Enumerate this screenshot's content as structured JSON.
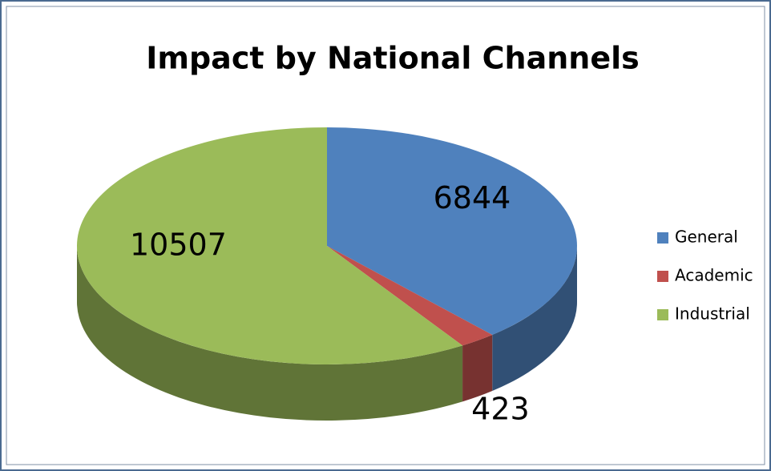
{
  "chart_data": {
    "type": "pie",
    "title": "Impact by National Channels",
    "categories": [
      "General",
      "Academic",
      "Industrial"
    ],
    "values": [
      6844,
      423,
      10507
    ],
    "colors": [
      "#4f81bd",
      "#c0504d",
      "#9bbb59"
    ],
    "legend": "right"
  }
}
